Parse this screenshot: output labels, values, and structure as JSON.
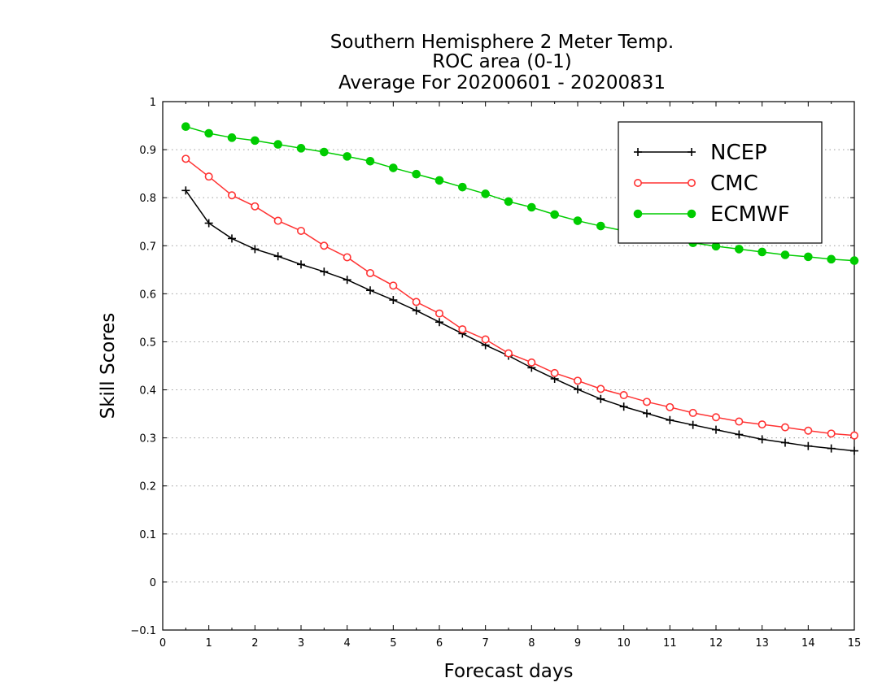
{
  "chart_data": {
    "type": "line",
    "title_lines": [
      "Southern Hemisphere 2 Meter Temp.",
      "ROC area (0-1)",
      "Average For 20200601 - 20200831"
    ],
    "xlabel": "Forecast days",
    "ylabel": "Skill Scores",
    "xlim": [
      0,
      15
    ],
    "ylim": [
      -0.1,
      1
    ],
    "x_ticks": [
      "0",
      "1",
      "2",
      "3",
      "4",
      "5",
      "6",
      "7",
      "8",
      "9",
      "10",
      "11",
      "12",
      "13",
      "14",
      "15"
    ],
    "y_ticks": [
      "−0.1",
      "0",
      "0.1",
      "0.2",
      "0.3",
      "0.4",
      "0.5",
      "0.6",
      "0.7",
      "0.8",
      "0.9",
      "1"
    ],
    "grid": "horizontal dotted",
    "legend_position": "top-right",
    "x": [
      0.5,
      1,
      1.5,
      2,
      2.5,
      3,
      3.5,
      4,
      4.5,
      5,
      5.5,
      6,
      6.5,
      7,
      7.5,
      8,
      8.5,
      9,
      9.5,
      10,
      10.5,
      11,
      11.5,
      12,
      12.5,
      13,
      13.5,
      14,
      14.5,
      15
    ],
    "series": [
      {
        "name": "NCEP",
        "color": "#000000",
        "marker": "plus",
        "values": [
          0.815,
          0.747,
          0.715,
          0.693,
          0.678,
          0.661,
          0.646,
          0.629,
          0.607,
          0.587,
          0.565,
          0.541,
          0.517,
          0.493,
          0.471,
          0.446,
          0.423,
          0.401,
          0.381,
          0.365,
          0.351,
          0.337,
          0.327,
          0.317,
          0.307,
          0.297,
          0.29,
          0.283,
          0.278,
          0.273
        ]
      },
      {
        "name": "CMC",
        "color": "#ff3333",
        "marker": "open-circle",
        "values": [
          0.881,
          0.844,
          0.805,
          0.782,
          0.752,
          0.731,
          0.7,
          0.676,
          0.643,
          0.617,
          0.583,
          0.559,
          0.526,
          0.505,
          0.476,
          0.457,
          0.435,
          0.419,
          0.402,
          0.389,
          0.375,
          0.364,
          0.352,
          0.343,
          0.334,
          0.328,
          0.322,
          0.315,
          0.309,
          0.305
        ]
      },
      {
        "name": "ECMWF",
        "color": "#00cc00",
        "marker": "filled-circle",
        "values": [
          0.948,
          0.934,
          0.925,
          0.919,
          0.911,
          0.903,
          0.895,
          0.886,
          0.876,
          0.862,
          0.849,
          0.836,
          0.822,
          0.808,
          0.792,
          0.78,
          0.765,
          0.752,
          0.741,
          0.731,
          0.722,
          0.714,
          0.706,
          0.699,
          0.693,
          0.687,
          0.681,
          0.677,
          0.672,
          0.669
        ]
      }
    ]
  }
}
